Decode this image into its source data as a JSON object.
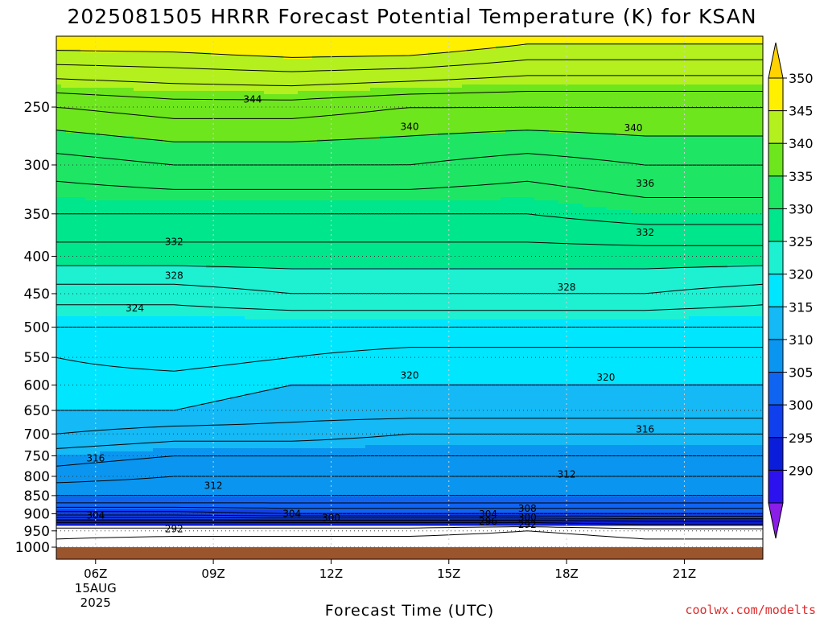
{
  "title": "2025081505 HRRR Forecast Potential Temperature (K) for KSAN",
  "credit": "coolwx.com/modelts",
  "chart_data": {
    "type": "contour",
    "title": "2025081505 HRRR Forecast Potential Temperature (K) for KSAN",
    "xlabel": "Forecast Time (UTC)",
    "ylabel": "",
    "y_scale": "log",
    "y_inverted": true,
    "y_ticks": [
      250,
      300,
      350,
      400,
      450,
      500,
      550,
      600,
      650,
      700,
      750,
      800,
      850,
      900,
      950,
      1000
    ],
    "ylim": [
      200,
      1025
    ],
    "x_ticks": [
      {
        "value": 6,
        "label": "06Z",
        "sub1": "15AUG",
        "sub2": "2025"
      },
      {
        "value": 9,
        "label": "09Z"
      },
      {
        "value": 12,
        "label": "12Z"
      },
      {
        "value": 15,
        "label": "15Z"
      },
      {
        "value": 18,
        "label": "18Z"
      },
      {
        "value": 21,
        "label": "21Z"
      }
    ],
    "xlim": [
      5,
      23
    ],
    "grid": true,
    "colorbar": {
      "levels": [
        285,
        290,
        295,
        300,
        305,
        310,
        315,
        320,
        325,
        330,
        335,
        340,
        345,
        350,
        355
      ],
      "tick_labels": [
        290,
        295,
        300,
        305,
        310,
        315,
        320,
        325,
        330,
        335,
        340,
        345,
        350
      ],
      "colors": [
        "#8a1de6",
        "#2d12f0",
        "#0a1ed9",
        "#1040ee",
        "#1064f2",
        "#0a96f0",
        "#14b9f5",
        "#00e6ff",
        "#1ef0d2",
        "#00e68c",
        "#1ee664",
        "#6ee61e",
        "#b4f01e",
        "#fff000",
        "#ffd200"
      ],
      "extend": "both"
    },
    "contour_interval": 2,
    "contour_labels": [
      {
        "value": 344,
        "x": 10.0,
        "p": 244
      },
      {
        "value": 340,
        "x": 14.0,
        "p": 266
      },
      {
        "value": 340,
        "x": 19.7,
        "p": 267
      },
      {
        "value": 336,
        "x": 20.0,
        "p": 318
      },
      {
        "value": 332,
        "x": 8.0,
        "p": 382
      },
      {
        "value": 332,
        "x": 20.0,
        "p": 371
      },
      {
        "value": 328,
        "x": 8.0,
        "p": 425
      },
      {
        "value": 328,
        "x": 18.0,
        "p": 441
      },
      {
        "value": 324,
        "x": 7.0,
        "p": 471
      },
      {
        "value": 320,
        "x": 14.0,
        "p": 582
      },
      {
        "value": 320,
        "x": 19.0,
        "p": 586
      },
      {
        "value": 316,
        "x": 6.0,
        "p": 756
      },
      {
        "value": 316,
        "x": 20.0,
        "p": 690
      },
      {
        "value": 312,
        "x": 9.0,
        "p": 824
      },
      {
        "value": 312,
        "x": 18.0,
        "p": 795
      },
      {
        "value": 308,
        "x": 17.0,
        "p": 885
      },
      {
        "value": 304,
        "x": 6.0,
        "p": 905
      },
      {
        "value": 304,
        "x": 11.0,
        "p": 900
      },
      {
        "value": 304,
        "x": 16.0,
        "p": 901
      },
      {
        "value": 300,
        "x": 12.0,
        "p": 912
      },
      {
        "value": 300,
        "x": 17.0,
        "p": 910
      },
      {
        "value": 296,
        "x": 16.0,
        "p": 922
      },
      {
        "value": 292,
        "x": 8.0,
        "p": 945
      },
      {
        "value": 292,
        "x": 17.0,
        "p": 932
      }
    ],
    "profiles": [
      {
        "x": 5.0,
        "levels": [
          [
            1000,
            291
          ],
          [
            950,
            293
          ],
          [
            925,
            296
          ],
          [
            900,
            303
          ],
          [
            870,
            308
          ],
          [
            850,
            310
          ],
          [
            800,
            313
          ],
          [
            750,
            315
          ],
          [
            700,
            318
          ],
          [
            650,
            320
          ],
          [
            600,
            321
          ],
          [
            550,
            322
          ],
          [
            500,
            324
          ],
          [
            450,
            327
          ],
          [
            400,
            331
          ],
          [
            350,
            334
          ],
          [
            300,
            337
          ],
          [
            250,
            342
          ],
          [
            200,
            352
          ]
        ]
      },
      {
        "x": 8.0,
        "levels": [
          [
            1000,
            290
          ],
          [
            950,
            293
          ],
          [
            925,
            296
          ],
          [
            900,
            303
          ],
          [
            870,
            308
          ],
          [
            850,
            310
          ],
          [
            800,
            312
          ],
          [
            750,
            314
          ],
          [
            700,
            317
          ],
          [
            650,
            320
          ],
          [
            600,
            321
          ],
          [
            550,
            323
          ],
          [
            500,
            324
          ],
          [
            450,
            327
          ],
          [
            400,
            331
          ],
          [
            350,
            334
          ],
          [
            300,
            338
          ],
          [
            250,
            343
          ],
          [
            200,
            352
          ]
        ]
      },
      {
        "x": 11.0,
        "levels": [
          [
            1000,
            290
          ],
          [
            950,
            293
          ],
          [
            925,
            296
          ],
          [
            900,
            304
          ],
          [
            870,
            308
          ],
          [
            850,
            310
          ],
          [
            800,
            312
          ],
          [
            750,
            314
          ],
          [
            700,
            317
          ],
          [
            650,
            319
          ],
          [
            600,
            320
          ],
          [
            550,
            322
          ],
          [
            500,
            324
          ],
          [
            450,
            328
          ],
          [
            400,
            331
          ],
          [
            350,
            334
          ],
          [
            300,
            338
          ],
          [
            250,
            343
          ],
          [
            200,
            353
          ]
        ]
      },
      {
        "x": 14.0,
        "levels": [
          [
            1000,
            290
          ],
          [
            950,
            293
          ],
          [
            925,
            296
          ],
          [
            900,
            304
          ],
          [
            870,
            308
          ],
          [
            850,
            310
          ],
          [
            800,
            312
          ],
          [
            750,
            314
          ],
          [
            700,
            316
          ],
          [
            650,
            319
          ],
          [
            600,
            320
          ],
          [
            550,
            321
          ],
          [
            500,
            324
          ],
          [
            450,
            328
          ],
          [
            400,
            331
          ],
          [
            350,
            334
          ],
          [
            300,
            338
          ],
          [
            250,
            342
          ],
          [
            200,
            353
          ]
        ]
      },
      {
        "x": 17.0,
        "levels": [
          [
            1000,
            290
          ],
          [
            950,
            292
          ],
          [
            925,
            296
          ],
          [
            900,
            304
          ],
          [
            870,
            308
          ],
          [
            850,
            310
          ],
          [
            800,
            312
          ],
          [
            750,
            314
          ],
          [
            700,
            316
          ],
          [
            650,
            319
          ],
          [
            600,
            320
          ],
          [
            550,
            321
          ],
          [
            500,
            324
          ],
          [
            450,
            328
          ],
          [
            400,
            331
          ],
          [
            350,
            334
          ],
          [
            300,
            337
          ],
          [
            250,
            342
          ],
          [
            200,
            351
          ]
        ]
      },
      {
        "x": 20.0,
        "levels": [
          [
            1000,
            291
          ],
          [
            950,
            293
          ],
          [
            925,
            297
          ],
          [
            900,
            304
          ],
          [
            870,
            308
          ],
          [
            850,
            310
          ],
          [
            800,
            312
          ],
          [
            750,
            314
          ],
          [
            700,
            316
          ],
          [
            650,
            319
          ],
          [
            600,
            320
          ],
          [
            550,
            321
          ],
          [
            500,
            324
          ],
          [
            450,
            328
          ],
          [
            400,
            331
          ],
          [
            350,
            335
          ],
          [
            300,
            338
          ],
          [
            250,
            342
          ],
          [
            200,
            351
          ]
        ]
      },
      {
        "x": 23.0,
        "levels": [
          [
            1000,
            291
          ],
          [
            950,
            293
          ],
          [
            925,
            297
          ],
          [
            900,
            304
          ],
          [
            870,
            308
          ],
          [
            850,
            310
          ],
          [
            800,
            312
          ],
          [
            750,
            314
          ],
          [
            700,
            316
          ],
          [
            650,
            319
          ],
          [
            600,
            320
          ],
          [
            550,
            321
          ],
          [
            500,
            324
          ],
          [
            450,
            327
          ],
          [
            400,
            331
          ],
          [
            350,
            335
          ],
          [
            300,
            338
          ],
          [
            250,
            342
          ],
          [
            200,
            351
          ]
        ]
      }
    ],
    "ground_color": "#9b552d"
  }
}
